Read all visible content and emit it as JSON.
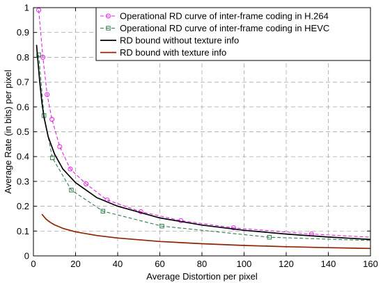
{
  "chart_data": {
    "type": "line",
    "title": "",
    "xlabel": "Average Distortion per pixel",
    "ylabel": "Average Rate (in bits) per pixel",
    "xlim": [
      0,
      160
    ],
    "ylim": [
      0,
      1
    ],
    "xticks": [
      0,
      20,
      40,
      60,
      80,
      100,
      120,
      140,
      160
    ],
    "yticks": [
      0,
      0.1,
      0.2,
      0.3,
      0.4,
      0.5,
      0.6,
      0.7,
      0.8,
      0.9,
      1
    ],
    "xtick_labels": [
      "0",
      "20",
      "40",
      "60",
      "80",
      "100",
      "120",
      "140",
      "160"
    ],
    "ytick_labels": [
      "0",
      "0.1",
      "0.2",
      "0.3",
      "0.4",
      "0.5",
      "0.6",
      "0.7",
      "0.8",
      "0.9",
      "1"
    ],
    "grid": true,
    "legend_position": "top-right",
    "series": [
      {
        "name": "Operational RD curve of inter-frame coding in H.264",
        "color": "#e61ee6",
        "style": "dashed",
        "marker": "circle",
        "x": [
          2.5,
          4.5,
          6.5,
          8.8,
          12.5,
          17.5,
          25,
          35,
          51,
          70,
          95,
          132,
          160
        ],
        "y": [
          0.99,
          0.8,
          0.65,
          0.55,
          0.44,
          0.35,
          0.29,
          0.225,
          0.178,
          0.142,
          0.113,
          0.088,
          0.075
        ]
      },
      {
        "name": "Operational RD curve of inter-frame coding in HEVC",
        "color": "#2e7d4a",
        "style": "dashed",
        "marker": "square",
        "x": [
          2.5,
          5,
          9,
          18,
          33,
          61,
          112,
          160
        ],
        "y": [
          0.81,
          0.565,
          0.395,
          0.265,
          0.18,
          0.12,
          0.075,
          0.062
        ]
      },
      {
        "name": "RD bound without texture info",
        "color": "#000000",
        "style": "solid",
        "marker": "none",
        "x": [
          1.5,
          2,
          3,
          4,
          5,
          7,
          10,
          14,
          20,
          30,
          40,
          60,
          80,
          100,
          120,
          140,
          160
        ],
        "y": [
          0.85,
          0.8,
          0.7,
          0.62,
          0.56,
          0.48,
          0.41,
          0.35,
          0.295,
          0.235,
          0.2,
          0.153,
          0.124,
          0.103,
          0.088,
          0.076,
          0.066
        ]
      },
      {
        "name": "RD bound with texture info",
        "color": "#8b2500",
        "style": "solid",
        "marker": "none",
        "x": [
          4,
          6,
          8,
          10,
          14,
          20,
          30,
          40,
          60,
          80,
          100,
          120,
          140,
          160
        ],
        "y": [
          0.168,
          0.148,
          0.135,
          0.125,
          0.111,
          0.097,
          0.082,
          0.072,
          0.058,
          0.049,
          0.042,
          0.037,
          0.033,
          0.03
        ]
      }
    ]
  }
}
